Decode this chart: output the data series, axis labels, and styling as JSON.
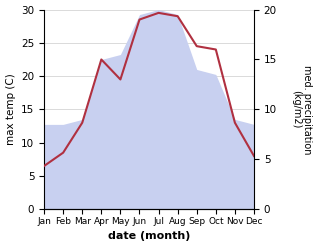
{
  "months": [
    "Jan",
    "Feb",
    "Mar",
    "Apr",
    "May",
    "Jun",
    "Jul",
    "Aug",
    "Sep",
    "Oct",
    "Nov",
    "Dec"
  ],
  "max_temp": [
    6.5,
    8.5,
    13.0,
    22.5,
    19.5,
    28.5,
    29.5,
    29.0,
    24.5,
    24.0,
    13.0,
    8.0
  ],
  "precipitation": [
    8.5,
    8.5,
    9.0,
    15.0,
    15.5,
    19.5,
    20.0,
    19.5,
    14.0,
    13.5,
    9.0,
    8.5
  ],
  "temp_color": "#b03040",
  "precip_fill_color": "#c8d0f0",
  "temp_ylim": [
    0,
    30
  ],
  "precip_ylim": [
    0,
    20
  ],
  "xlabel": "date (month)",
  "ylabel_left": "max temp (C)",
  "ylabel_right": "med. precipitation\n(kg/m2)",
  "grid_color": "#cccccc"
}
